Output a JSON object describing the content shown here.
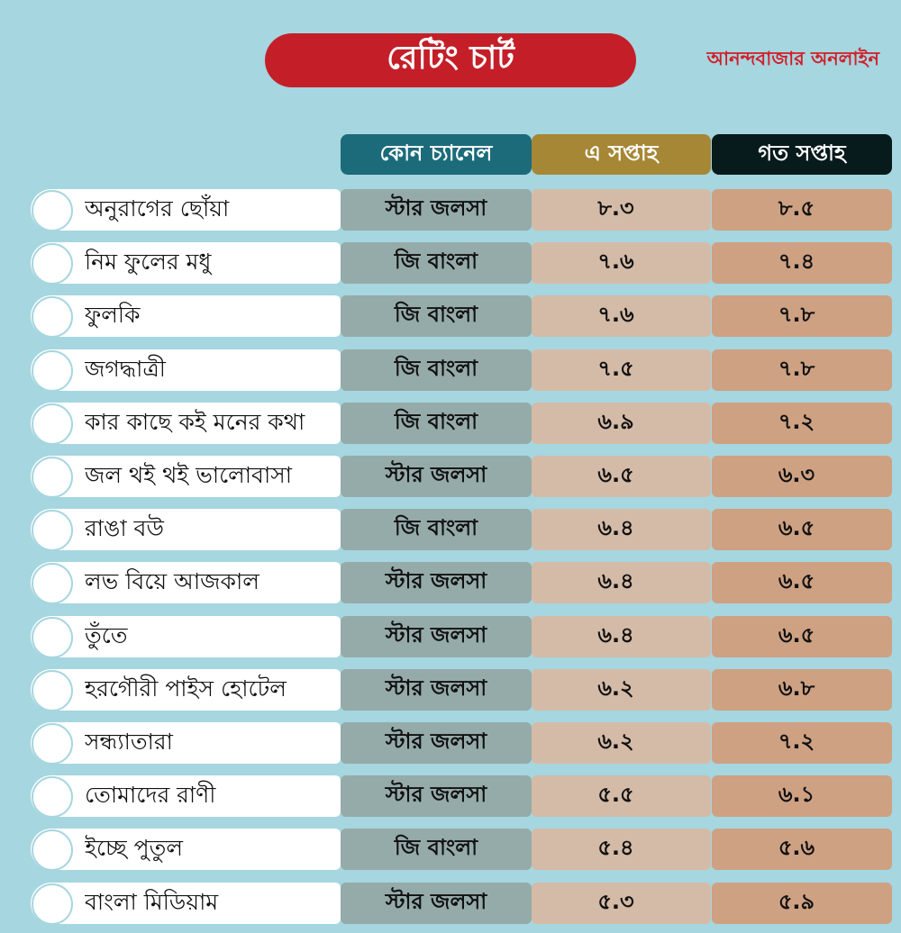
{
  "chart_data": {
    "type": "table",
    "title": "রেটিং চার্ট",
    "brand": "আনন্দবাজার অনলাইন",
    "columns": {
      "channel": "কোন চ্যানেল",
      "this_week": "এ সপ্তাহ",
      "last_week": "গত সপ্তাহ"
    },
    "rows": [
      {
        "name": "অনুরাগের ছোঁয়া",
        "channel": "স্টার জলসা",
        "this_week": "৮.৩",
        "last_week": "৮.৫"
      },
      {
        "name": "নিম ফুলের মধু",
        "channel": "জি বাংলা",
        "this_week": "৭.৬",
        "last_week": "৭.৪"
      },
      {
        "name": "ফুলকি",
        "channel": "জি বাংলা",
        "this_week": "৭.৬",
        "last_week": "৭.৮"
      },
      {
        "name": "জগদ্ধাত্রী",
        "channel": "জি বাংলা",
        "this_week": "৭.৫",
        "last_week": "৭.৮"
      },
      {
        "name": "কার কাছে কই মনের কথা",
        "channel": "জি বাংলা",
        "this_week": "৬.৯",
        "last_week": "৭.২"
      },
      {
        "name": "জল থই থই ভালোবাসা",
        "channel": "স্টার জলসা",
        "this_week": "৬.৫",
        "last_week": "৬.৩"
      },
      {
        "name": "রাঙা বউ",
        "channel": "জি বাংলা",
        "this_week": "৬.৪",
        "last_week": "৬.৫"
      },
      {
        "name": "লভ বিয়ে আজকাল",
        "channel": "স্টার জলসা",
        "this_week": "৬.৪",
        "last_week": "৬.৫"
      },
      {
        "name": "তুঁতে",
        "channel": "স্টার জলসা",
        "this_week": "৬.৪",
        "last_week": "৬.৫"
      },
      {
        "name": "হরগৌরী পাইস হোটেল",
        "channel": "স্টার জলসা",
        "this_week": "৬.২",
        "last_week": "৬.৮"
      },
      {
        "name": "সন্ধ্যাতারা",
        "channel": "স্টার জলসা",
        "this_week": "৬.২",
        "last_week": "৭.২"
      },
      {
        "name": "তোমাদের রাণী",
        "channel": "স্টার জলসা",
        "this_week": "৫.৫",
        "last_week": "৬.১"
      },
      {
        "name": "ইচ্ছে পুতুল",
        "channel": "জি বাংলা",
        "this_week": "৫.৪",
        "last_week": "৫.৬"
      },
      {
        "name": "বাংলা মিডিয়াম",
        "channel": "স্টার জলসা",
        "this_week": "৫.৩",
        "last_week": "৫.৯"
      }
    ],
    "colors": {
      "background": "#a6d6df",
      "title_pill": "#c41f28",
      "brand_text": "#d21f2a",
      "header_channel": "#1c6b7a",
      "header_this_week": "#a68736",
      "header_last_week": "#071a1c",
      "cell_channel": "#95aba9",
      "cell_this_week": "#d4bba7",
      "cell_last_week": "#cea183"
    }
  }
}
